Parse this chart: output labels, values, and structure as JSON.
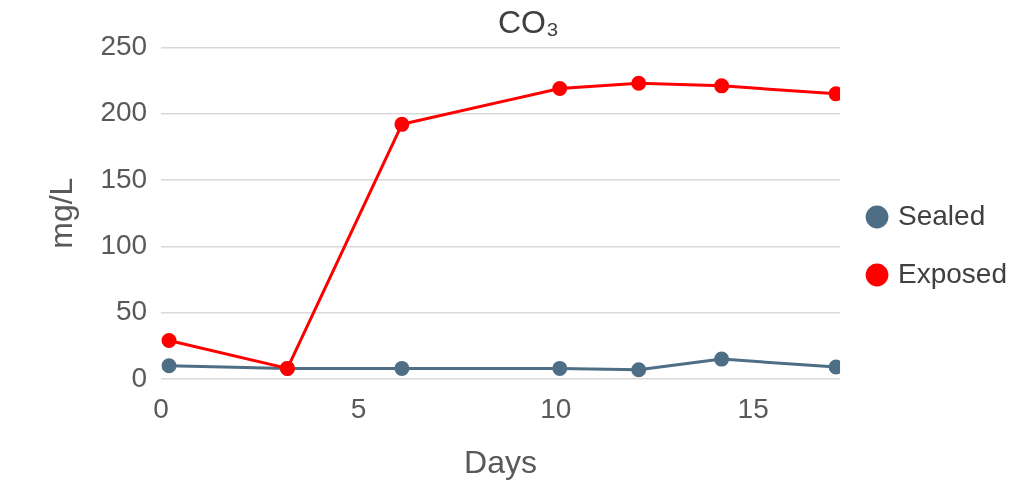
{
  "chart_data": {
    "type": "line",
    "title": "CO₃",
    "xlabel": "Days",
    "ylabel": "mg/L",
    "xlim": [
      0,
      17.2
    ],
    "xticks": [
      0,
      5,
      10,
      15
    ],
    "ylim": [
      0,
      250
    ],
    "yticks": [
      0,
      50,
      100,
      150,
      200,
      250
    ],
    "grid": "y",
    "legend": "right",
    "marker": "circle",
    "line_style": "solid",
    "series": [
      {
        "name": "Sealed",
        "color": "#4e6e86",
        "x": [
          0.2,
          3.2,
          6.1,
          10.1,
          12.1,
          14.2,
          17.1
        ],
        "values": [
          10,
          8,
          8,
          8,
          7,
          15,
          9
        ]
      },
      {
        "name": "Exposed",
        "color": "#ff0000",
        "x": [
          0.2,
          3.2,
          6.1,
          10.1,
          12.1,
          14.2,
          17.1
        ],
        "values": [
          29,
          8,
          192,
          219,
          223,
          221,
          215
        ]
      }
    ]
  }
}
